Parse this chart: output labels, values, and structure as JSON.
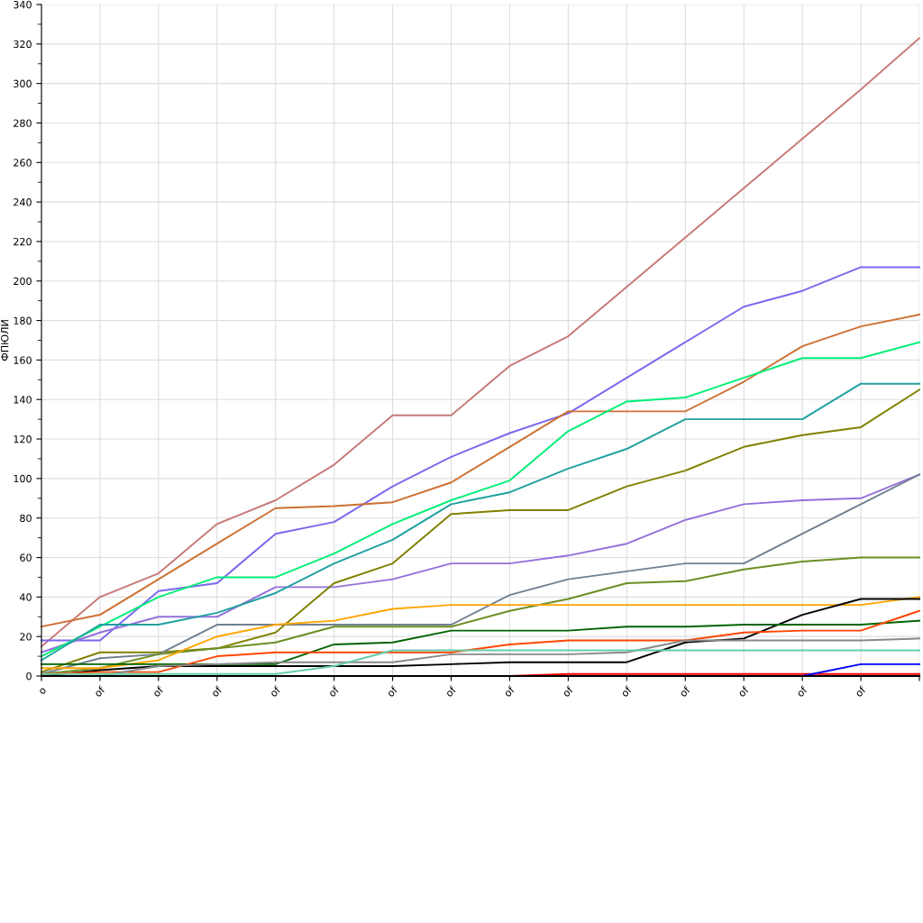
{
  "chart_data": {
    "type": "line",
    "ylabel": "ФПЮЛИ",
    "categories": [
      "o",
      "of",
      "of",
      "of",
      "of",
      "of",
      "of",
      "of",
      "of",
      "of",
      "of",
      "of",
      "of",
      "of",
      "of",
      null
    ],
    "ylim": [
      0,
      340
    ],
    "yticks": [
      0,
      20,
      40,
      60,
      80,
      100,
      120,
      140,
      160,
      180,
      200,
      220,
      240,
      260,
      280,
      300,
      320,
      340
    ],
    "grid": true,
    "marker": "none",
    "line_style": "solid",
    "series": [
      {
        "color": "#c87878",
        "values": [
          15,
          40,
          52,
          77,
          89,
          107,
          132,
          132,
          157,
          172,
          197,
          222,
          247,
          272,
          297,
          323
        ]
      },
      {
        "color": "#7b68ee",
        "values": [
          18,
          18,
          43,
          47,
          72,
          78,
          96,
          111,
          123,
          133,
          151,
          169,
          187,
          195,
          207,
          207
        ]
      },
      {
        "color": "#9370db",
        "values": [
          12,
          22,
          30,
          30,
          45,
          45,
          49,
          57,
          57,
          61,
          67,
          79,
          87,
          89,
          90,
          102
        ]
      },
      {
        "color": "#cd7032",
        "values": [
          25,
          31,
          49,
          67,
          85,
          86,
          88,
          98,
          116,
          134,
          134,
          134,
          149,
          167,
          177,
          183
        ]
      },
      {
        "color": "#00ee76",
        "values": [
          10,
          25,
          40,
          50,
          50,
          62,
          77,
          89,
          99,
          124,
          139,
          141,
          151,
          161,
          161,
          169
        ]
      },
      {
        "color": "#20a0a0",
        "values": [
          8,
          26,
          26,
          32,
          42,
          57,
          69,
          87,
          93,
          105,
          115,
          130,
          130,
          130,
          148,
          148
        ]
      },
      {
        "color": "#808000",
        "values": [
          2,
          12,
          12,
          14,
          22,
          47,
          57,
          82,
          84,
          84,
          96,
          104,
          116,
          122,
          126,
          145
        ]
      },
      {
        "color": "#708090",
        "values": [
          1,
          9,
          11,
          26,
          26,
          26,
          26,
          26,
          41,
          49,
          53,
          57,
          57,
          72,
          87,
          102
        ]
      },
      {
        "color": "#6b8e23",
        "values": [
          1,
          4,
          11,
          14,
          17,
          25,
          25,
          25,
          33,
          39,
          47,
          48,
          54,
          58,
          60,
          60
        ]
      },
      {
        "color": "#ffa500",
        "values": [
          4,
          4,
          8,
          20,
          26,
          28,
          34,
          36,
          36,
          36,
          36,
          36,
          36,
          36,
          36,
          40
        ]
      },
      {
        "color": "#000000",
        "values": [
          0,
          3,
          5,
          5,
          5,
          5,
          5,
          6,
          7,
          7,
          7,
          17,
          19,
          31,
          39,
          39
        ]
      },
      {
        "color": "#006400",
        "values": [
          6,
          6,
          6,
          6,
          6,
          16,
          17,
          23,
          23,
          23,
          25,
          25,
          26,
          26,
          26,
          28
        ]
      },
      {
        "color": "#ff4500",
        "values": [
          1,
          2,
          2,
          10,
          12,
          12,
          12,
          12,
          16,
          18,
          18,
          18,
          22,
          23,
          23,
          33
        ]
      },
      {
        "color": "#888888",
        "values": [
          0,
          0,
          5,
          6,
          7,
          7,
          7,
          11,
          11,
          11,
          12,
          18,
          18,
          18,
          18,
          19
        ]
      },
      {
        "color": "#66cdaa",
        "values": [
          1,
          1,
          1,
          1,
          1,
          5,
          13,
          13,
          13,
          13,
          13,
          13,
          13,
          13,
          13,
          13
        ]
      },
      {
        "color": "#ff0000",
        "values": [
          null,
          null,
          null,
          null,
          null,
          null,
          null,
          null,
          0,
          1,
          1,
          1,
          1,
          1,
          1,
          1
        ]
      },
      {
        "color": "#0000ff",
        "values": [
          null,
          null,
          null,
          null,
          null,
          null,
          null,
          null,
          null,
          null,
          null,
          null,
          null,
          0,
          6,
          6
        ]
      }
    ]
  }
}
